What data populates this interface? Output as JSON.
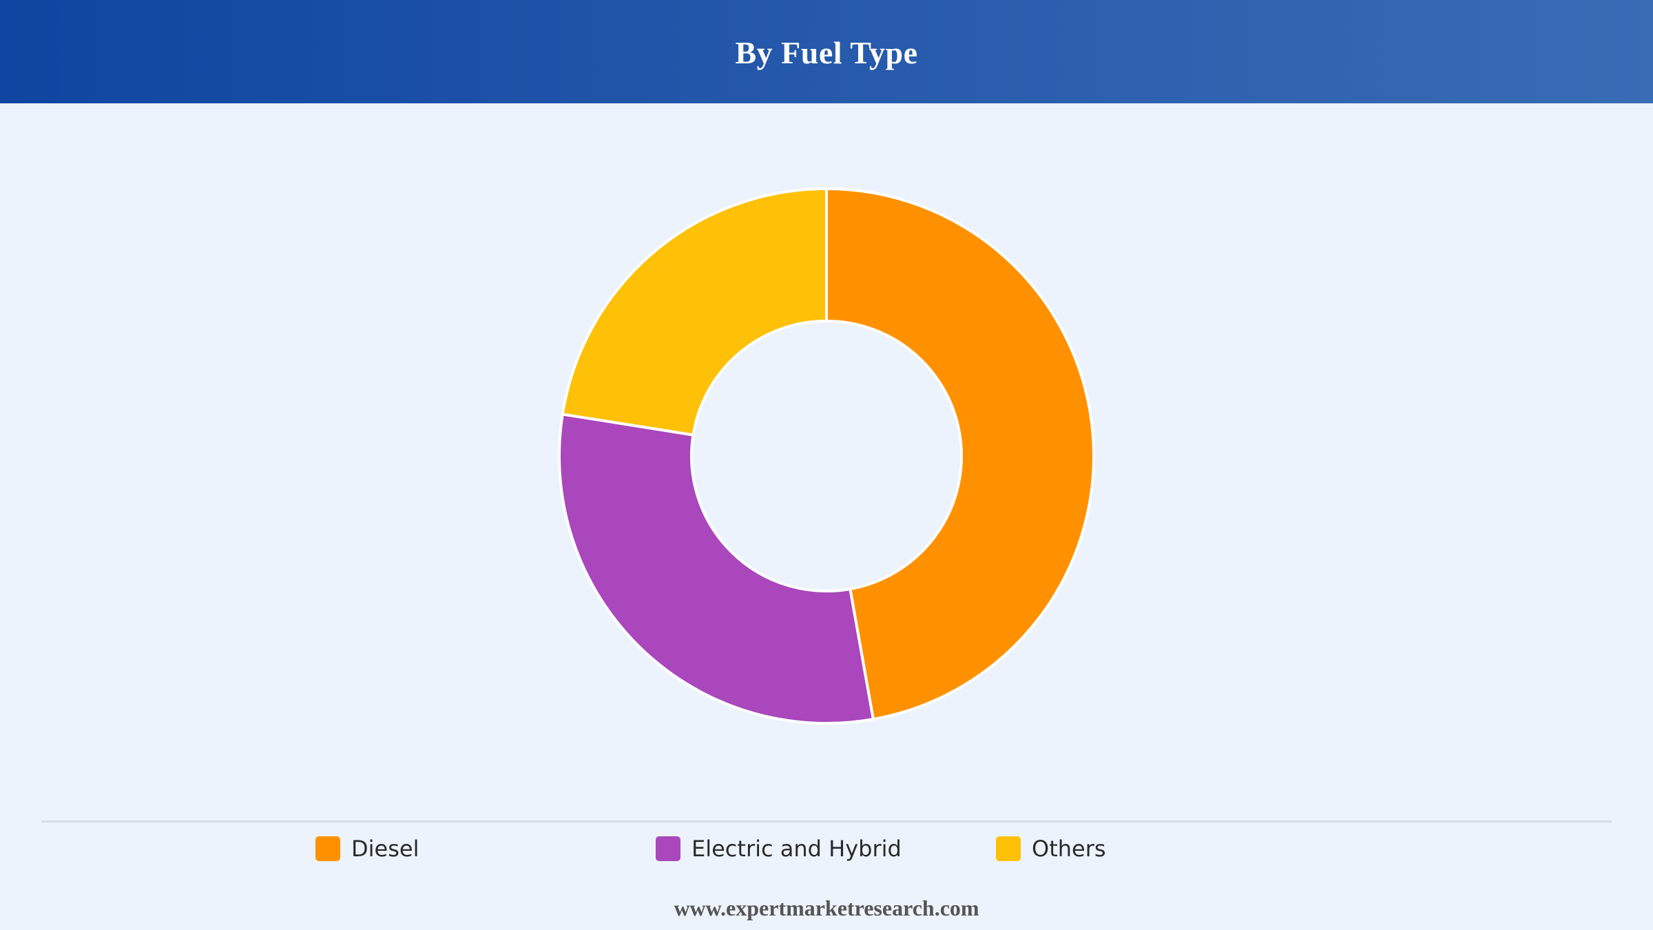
{
  "header": {
    "title": "By Fuel Type"
  },
  "chart_data": {
    "type": "pie",
    "variant": "donut",
    "title": "By Fuel Type",
    "categories": [
      "Diesel",
      "Electric and Hybrid",
      "Others"
    ],
    "values": [
      47.2,
      30.3,
      22.5
    ],
    "unit": "%",
    "colors": [
      "#ff9100",
      "#aa47bc",
      "#ffc107"
    ],
    "slice_border_color": "#ffffff",
    "start_angle": "12 o'clock",
    "direction": "clockwise",
    "legend_position": "bottom",
    "data_labels": false
  },
  "legend": {
    "items": [
      {
        "label": "Diesel",
        "color": "#ff9100"
      },
      {
        "label": "Electric and Hybrid",
        "color": "#aa47bc"
      },
      {
        "label": "Others",
        "color": "#ffc107"
      }
    ]
  },
  "footer": {
    "source": "www.expertmarketresearch.com"
  }
}
